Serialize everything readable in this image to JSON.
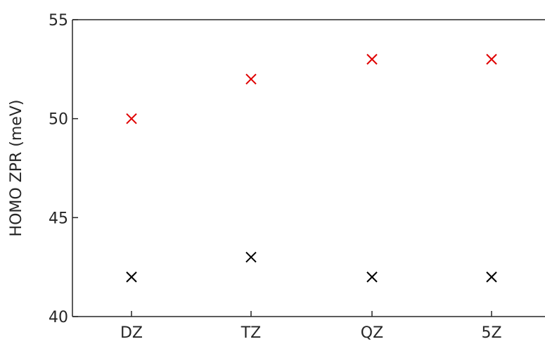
{
  "chart_data": {
    "type": "scatter",
    "categories": [
      "DZ",
      "TZ",
      "QZ",
      "5Z"
    ],
    "series": [
      {
        "values": [
          50,
          52,
          53,
          53
        ],
        "color": "#e00000",
        "marker": "x"
      },
      {
        "values": [
          42,
          43,
          42,
          42
        ],
        "color": "#000000",
        "marker": "x"
      }
    ],
    "ylabel": "HOMO ZPR (meV)",
    "ylim": [
      40,
      55
    ],
    "yticks": [
      40,
      45,
      50,
      55
    ],
    "grid": false
  }
}
